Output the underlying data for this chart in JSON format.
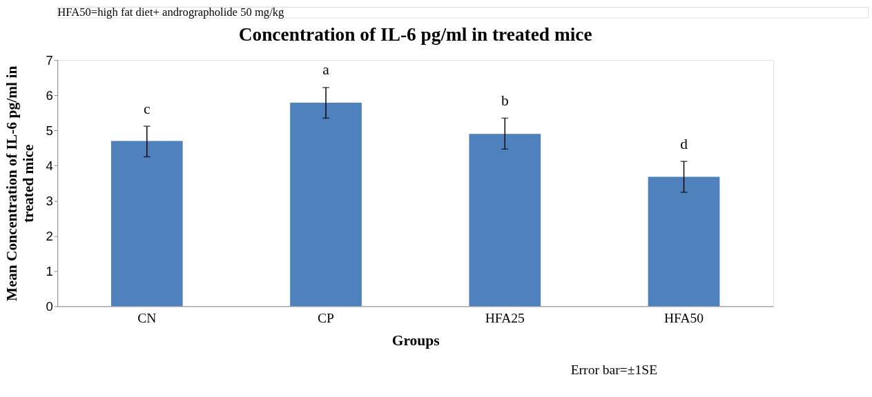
{
  "chart_data": {
    "type": "bar",
    "title": "Concentration of IL-6 pg/ml in treated mice",
    "xlabel": "Groups",
    "ylabel": "Mean Concentration of IL-6 pg/ml in treated mice",
    "categories": [
      "CN",
      "CP",
      "HFA25",
      "HFA50"
    ],
    "values": [
      4.7,
      5.79,
      4.9,
      3.68
    ],
    "errors": [
      [
        4.25,
        5.12
      ],
      [
        5.35,
        6.22
      ],
      [
        4.47,
        5.35
      ],
      [
        3.24,
        4.12
      ]
    ],
    "color": "#4f81bd",
    "ylim": [
      0,
      7
    ],
    "yticks": [
      0,
      1,
      2,
      3,
      4,
      5,
      6,
      7
    ],
    "grid": false,
    "annotations": [
      "c",
      "a",
      "b",
      "d",
      "Error bar=±1SE",
      "HFA50=high fat diet+ andrographolide 50 mg/kg"
    ]
  }
}
